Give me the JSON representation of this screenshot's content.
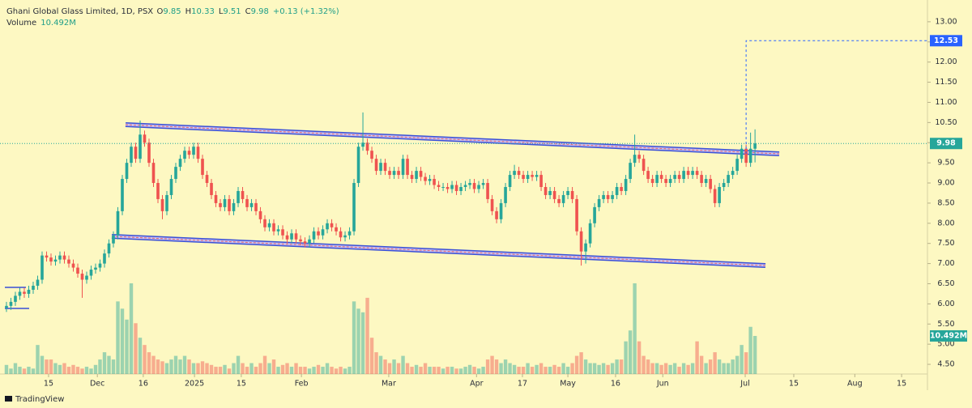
{
  "chart_data": {
    "type": "candlestick",
    "title": "Ghani Global Glass Limited, 1D, PSX",
    "ohlc_labels": [
      "O",
      "H",
      "L",
      "C"
    ],
    "change_label": "+0.13 (+1.32%)",
    "volume_title": "Volume",
    "volume_label": "10.492M",
    "up_color": "#26a69a",
    "down_color": "#ef5350",
    "target": 12.53,
    "target_color": "#2962ff",
    "ylim": [
      4.26,
      13.54
    ],
    "yticks": [
      {
        "value": 4.5,
        "label": "4.50"
      },
      {
        "value": 5,
        "label": "5.00"
      },
      {
        "value": 5.5,
        "label": "5.50"
      },
      {
        "value": 6,
        "label": "6.00"
      },
      {
        "value": 6.5,
        "label": "6.50"
      },
      {
        "value": 7,
        "label": "7.00"
      },
      {
        "value": 7.5,
        "label": "7.50"
      },
      {
        "value": 8,
        "label": "8.00"
      },
      {
        "value": 8.5,
        "label": "8.50"
      },
      {
        "value": 9,
        "label": "9.00"
      },
      {
        "value": 9.5,
        "label": "9.50"
      },
      {
        "value": 10,
        "label": "10.00"
      },
      {
        "value": 10.5,
        "label": "10.50"
      },
      {
        "value": 11,
        "label": "11.00"
      },
      {
        "value": 11.5,
        "label": "11.50"
      },
      {
        "value": 12,
        "label": "12.00"
      },
      {
        "value": 12.5,
        "label": "12.50"
      },
      {
        "value": 13,
        "label": "13.00"
      }
    ],
    "xlim": [
      -1.45,
      206.7
    ],
    "xticks": [
      {
        "value": 9.45,
        "label": "15"
      },
      {
        "value": 20.4,
        "label": "Dec"
      },
      {
        "value": 30.7,
        "label": "16"
      },
      {
        "value": 42.2,
        "label": "2025"
      },
      {
        "value": 52.7,
        "label": "15"
      },
      {
        "value": 66.2,
        "label": "Feb"
      },
      {
        "value": 85.8,
        "label": "Mar"
      },
      {
        "value": 105.5,
        "label": "Apr"
      },
      {
        "value": 115.8,
        "label": "17"
      },
      {
        "value": 126,
        "label": "May"
      },
      {
        "value": 136.7,
        "label": "16"
      },
      {
        "value": 147.3,
        "label": "Jun"
      },
      {
        "value": 165.8,
        "label": "Jul"
      },
      {
        "value": 176.7,
        "label": "15"
      },
      {
        "value": 190.4,
        "label": "Aug"
      },
      {
        "value": 200.9,
        "label": "15"
      }
    ],
    "volume_ylim": [
      0,
      56
    ],
    "open": [
      5.9,
      5.95,
      6.05,
      6.2,
      6.3,
      6.25,
      6.35,
      6.45,
      6.6,
      7.2,
      7.15,
      7.05,
      7.1,
      7.2,
      7.1,
      7.0,
      6.9,
      6.75,
      6.6,
      6.7,
      6.85,
      6.9,
      7.0,
      7.25,
      7.5,
      7.7,
      8.3,
      9.1,
      9.5,
      9.9,
      9.6,
      10.2,
      10.0,
      9.5,
      9.0,
      8.6,
      8.3,
      8.7,
      9.1,
      9.4,
      9.6,
      9.8,
      9.7,
      9.9,
      9.6,
      9.2,
      9.0,
      8.7,
      8.5,
      8.4,
      8.6,
      8.3,
      8.5,
      8.8,
      8.6,
      8.4,
      8.5,
      8.3,
      8.1,
      7.9,
      8.0,
      7.8,
      7.85,
      7.7,
      7.6,
      7.75,
      7.6,
      7.55,
      7.5,
      7.6,
      7.8,
      7.7,
      7.85,
      8.0,
      7.9,
      7.8,
      7.65,
      7.7,
      7.8,
      9.0,
      9.9,
      10.0,
      9.8,
      9.6,
      9.3,
      9.5,
      9.3,
      9.2,
      9.3,
      9.2,
      9.6,
      9.2,
      9.1,
      9.3,
      9.15,
      9.05,
      9.1,
      8.95,
      8.9,
      8.9,
      8.85,
      8.95,
      8.8,
      8.9,
      8.95,
      9.0,
      8.85,
      8.95,
      9.0,
      8.6,
      8.3,
      8.1,
      8.5,
      8.9,
      9.2,
      9.3,
      9.2,
      9.1,
      9.2,
      9.15,
      9.2,
      8.9,
      8.7,
      8.8,
      8.6,
      8.5,
      8.7,
      8.8,
      8.6,
      7.8,
      7.3,
      7.5,
      8.0,
      8.4,
      8.6,
      8.7,
      8.6,
      8.7,
      8.9,
      8.8,
      9.1,
      9.5,
      9.7,
      9.6,
      9.3,
      9.1,
      9.0,
      9.2,
      9.1,
      9.0,
      9.1,
      9.2,
      9.1,
      9.3,
      9.2,
      9.3,
      9.2,
      9.0,
      9.1,
      8.85,
      8.5,
      8.9,
      9.0,
      9.2,
      9.3,
      9.6,
      9.85,
      9.5,
      9.85
    ],
    "high": [
      6.05,
      6.15,
      6.3,
      6.4,
      6.4,
      6.45,
      6.55,
      6.7,
      7.3,
      7.3,
      7.25,
      7.2,
      7.3,
      7.3,
      7.2,
      7.1,
      7.0,
      6.85,
      6.8,
      6.95,
      7.0,
      7.1,
      7.35,
      7.6,
      7.8,
      8.4,
      9.2,
      9.6,
      10.0,
      10.0,
      10.55,
      10.3,
      10.1,
      9.6,
      9.1,
      8.7,
      8.8,
      9.2,
      9.5,
      9.7,
      9.9,
      9.9,
      10.0,
      10.0,
      9.7,
      9.3,
      9.1,
      8.8,
      8.6,
      8.7,
      8.7,
      8.6,
      8.9,
      8.9,
      8.7,
      8.6,
      8.6,
      8.4,
      8.2,
      8.1,
      8.1,
      7.95,
      7.95,
      7.8,
      7.85,
      7.85,
      7.7,
      7.65,
      7.7,
      7.9,
      7.9,
      7.95,
      8.1,
      8.1,
      8.0,
      7.9,
      7.8,
      7.9,
      9.1,
      10.0,
      10.75,
      10.1,
      9.9,
      9.7,
      9.6,
      9.6,
      9.4,
      9.4,
      9.4,
      9.7,
      9.7,
      9.3,
      9.4,
      9.4,
      9.25,
      9.2,
      9.2,
      9.05,
      9.0,
      9.0,
      9.05,
      9.05,
      9.0,
      9.05,
      9.1,
      9.1,
      9.05,
      9.1,
      9.1,
      8.7,
      8.4,
      8.6,
      9.0,
      9.3,
      9.45,
      9.4,
      9.3,
      9.3,
      9.3,
      9.3,
      9.3,
      9.0,
      8.9,
      8.9,
      8.7,
      8.8,
      8.9,
      8.9,
      8.7,
      7.9,
      7.6,
      8.1,
      8.5,
      8.7,
      8.8,
      8.8,
      8.8,
      9.0,
      9.0,
      9.2,
      9.6,
      10.2,
      9.8,
      9.7,
      9.4,
      9.2,
      9.3,
      9.3,
      9.2,
      9.2,
      9.3,
      9.3,
      9.4,
      9.4,
      9.4,
      9.4,
      9.3,
      9.2,
      9.2,
      8.95,
      9.0,
      9.1,
      9.3,
      9.4,
      9.7,
      9.95,
      9.95,
      10.25,
      10.33
    ],
    "low": [
      5.8,
      5.85,
      5.95,
      6.1,
      6.15,
      6.15,
      6.25,
      6.35,
      6.5,
      7.05,
      6.95,
      6.95,
      7.0,
      7.0,
      6.9,
      6.8,
      6.65,
      6.15,
      6.5,
      6.6,
      6.75,
      6.8,
      6.9,
      7.15,
      7.4,
      7.6,
      8.2,
      9.0,
      9.4,
      9.5,
      9.5,
      9.9,
      9.4,
      8.9,
      8.5,
      8.1,
      8.2,
      8.6,
      9.0,
      9.3,
      9.5,
      9.6,
      9.6,
      9.5,
      9.1,
      8.9,
      8.6,
      8.4,
      8.3,
      8.3,
      8.2,
      8.2,
      8.4,
      8.5,
      8.3,
      8.3,
      8.2,
      8.0,
      7.8,
      7.8,
      7.7,
      7.7,
      7.6,
      7.5,
      7.5,
      7.5,
      7.45,
      7.4,
      7.4,
      7.5,
      7.6,
      7.6,
      7.75,
      7.8,
      7.7,
      7.55,
      7.55,
      7.6,
      7.7,
      8.9,
      9.8,
      9.7,
      9.5,
      9.2,
      9.2,
      9.2,
      9.1,
      9.1,
      9.1,
      9.1,
      9.1,
      9.0,
      9.0,
      9.05,
      8.95,
      8.95,
      8.85,
      8.8,
      8.8,
      8.75,
      8.75,
      8.7,
      8.7,
      8.8,
      8.85,
      8.75,
      8.75,
      8.85,
      8.5,
      8.2,
      8.0,
      8.0,
      8.4,
      8.8,
      9.1,
      9.1,
      9.0,
      9.0,
      9.05,
      9.05,
      8.8,
      8.6,
      8.6,
      8.5,
      8.4,
      8.4,
      8.6,
      8.5,
      7.7,
      6.95,
      7.0,
      7.4,
      7.9,
      8.3,
      8.5,
      8.5,
      8.5,
      8.6,
      8.7,
      8.7,
      9.0,
      9.4,
      9.5,
      9.2,
      9.0,
      8.9,
      8.9,
      9.0,
      8.9,
      8.9,
      9.0,
      9.0,
      9.0,
      9.1,
      9.1,
      9.1,
      8.9,
      8.9,
      8.75,
      8.4,
      8.4,
      8.8,
      8.9,
      9.1,
      9.2,
      9.5,
      9.4,
      9.4,
      9.51
    ],
    "close": [
      5.95,
      6.05,
      6.2,
      6.3,
      6.25,
      6.35,
      6.45,
      6.6,
      7.2,
      7.15,
      7.05,
      7.1,
      7.2,
      7.1,
      7.0,
      6.9,
      6.75,
      6.6,
      6.7,
      6.85,
      6.9,
      7.0,
      7.25,
      7.5,
      7.7,
      8.3,
      9.1,
      9.5,
      9.9,
      9.6,
      10.2,
      10.0,
      9.5,
      9.0,
      8.6,
      8.3,
      8.7,
      9.1,
      9.4,
      9.6,
      9.8,
      9.7,
      9.9,
      9.6,
      9.2,
      9.0,
      8.7,
      8.5,
      8.4,
      8.6,
      8.3,
      8.5,
      8.8,
      8.6,
      8.4,
      8.5,
      8.3,
      8.1,
      7.9,
      8.0,
      7.8,
      7.85,
      7.7,
      7.6,
      7.75,
      7.6,
      7.55,
      7.5,
      7.6,
      7.8,
      7.7,
      7.85,
      8.0,
      7.9,
      7.8,
      7.65,
      7.7,
      7.8,
      9.0,
      9.9,
      10.0,
      9.8,
      9.6,
      9.3,
      9.5,
      9.3,
      9.2,
      9.3,
      9.2,
      9.6,
      9.2,
      9.1,
      9.3,
      9.15,
      9.05,
      9.1,
      8.95,
      8.9,
      8.9,
      8.85,
      8.95,
      8.8,
      8.9,
      8.95,
      9.0,
      8.85,
      8.95,
      9.0,
      8.6,
      8.3,
      8.1,
      8.5,
      8.9,
      9.2,
      9.3,
      9.2,
      9.1,
      9.2,
      9.15,
      9.2,
      8.9,
      8.7,
      8.8,
      8.6,
      8.5,
      8.7,
      8.8,
      8.6,
      7.8,
      7.3,
      7.5,
      8.0,
      8.4,
      8.6,
      8.7,
      8.6,
      8.7,
      8.9,
      8.8,
      9.1,
      9.5,
      9.7,
      9.6,
      9.3,
      9.1,
      9.0,
      9.2,
      9.1,
      9.0,
      9.1,
      9.2,
      9.1,
      9.3,
      9.2,
      9.3,
      9.2,
      9.0,
      9.1,
      8.85,
      8.5,
      8.9,
      9.0,
      9.2,
      9.3,
      9.6,
      9.85,
      9.5,
      9.85,
      9.98
    ],
    "volume": [
      2.5,
      1.5,
      3,
      2,
      1.5,
      2,
      1.5,
      8,
      5,
      4,
      4,
      3,
      2.5,
      3,
      2,
      2.5,
      2,
      1.5,
      2,
      1.5,
      2.5,
      4,
      6,
      5,
      4,
      20,
      18,
      15,
      25,
      14,
      10,
      8,
      6,
      5,
      4,
      3.5,
      3,
      4,
      5,
      4,
      5,
      4,
      3,
      3,
      3.5,
      3,
      2.5,
      2,
      2,
      2.5,
      1.5,
      3,
      5,
      3,
      2,
      3,
      2,
      3,
      5,
      3,
      4,
      2,
      2.5,
      3,
      2,
      3,
      2,
      2,
      1.5,
      2,
      2.5,
      2,
      3,
      2,
      1.5,
      2,
      1.5,
      2,
      20,
      18,
      17,
      21,
      10,
      6,
      5,
      4,
      3,
      4,
      3,
      5,
      3,
      2,
      2.5,
      2,
      3,
      2,
      2,
      2,
      1.5,
      2,
      2,
      1.5,
      1.5,
      2,
      2.5,
      2,
      1.5,
      2,
      4,
      5,
      4,
      3,
      4,
      3,
      2.5,
      2,
      2,
      3,
      2,
      2.5,
      3,
      2,
      2,
      2.5,
      2,
      3,
      2,
      3,
      5,
      6,
      4,
      3,
      3,
      2.5,
      3,
      2.5,
      3,
      4,
      4,
      9,
      12,
      25,
      9,
      5,
      4,
      3,
      3,
      2.5,
      3,
      2.5,
      3,
      2,
      3,
      2.5,
      3,
      9,
      5,
      3,
      4,
      6,
      4,
      3,
      3,
      4,
      5,
      8,
      6,
      13,
      10.492
    ]
  },
  "footer": "TradingView"
}
